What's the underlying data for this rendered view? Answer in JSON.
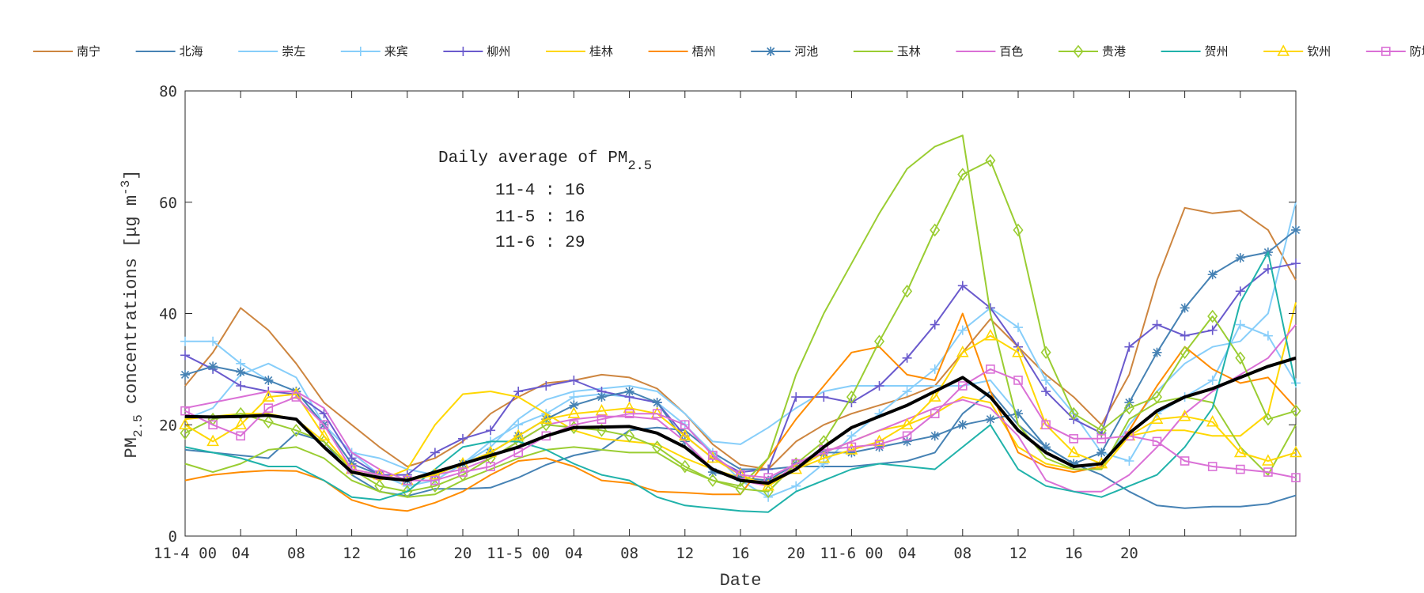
{
  "chart_data": {
    "type": "line",
    "title": "",
    "xlabel": "Date",
    "ylabel": {
      "base": "PM",
      "sub": "2.5",
      "rest": " concentrations [μg m",
      "sup": "-3",
      "end": "]"
    },
    "xlim": [
      0,
      80
    ],
    "ylim": [
      0,
      80
    ],
    "x_unit": "hours since 11-4 00:00",
    "yticks": [
      0,
      20,
      40,
      60,
      80
    ],
    "xticks": [
      0,
      4,
      8,
      12,
      16,
      20,
      24,
      28,
      32,
      36,
      40,
      44,
      48,
      52,
      56,
      60,
      64,
      68,
      72,
      76
    ],
    "xticklabels": [
      "11-4 00",
      "04",
      "08",
      "12",
      "16",
      "20",
      "11-5 00",
      "04",
      "08",
      "12",
      "16",
      "20",
      "11-6 00",
      "04",
      "08",
      "12",
      "16",
      "20",
      "",
      ""
    ],
    "grid": false,
    "legend_placement": "top",
    "annotation": {
      "title": "Daily average of PM",
      "title_sub": "2.5",
      "lines": [
        "11-4 : 16",
        "11-5 : 16",
        "11-6 : 29"
      ]
    },
    "x": [
      0,
      2,
      4,
      6,
      8,
      10,
      12,
      14,
      16,
      18,
      20,
      22,
      24,
      26,
      28,
      30,
      32,
      34,
      36,
      38,
      40,
      42,
      44,
      46,
      48,
      50,
      52,
      54,
      56,
      58,
      60,
      62,
      64,
      66,
      68,
      70,
      72,
      74,
      76,
      78,
      80
    ],
    "series": [
      {
        "name": "南宁",
        "color": "#CD853F",
        "marker": "none",
        "values": [
          27,
          33,
          41,
          37,
          31,
          24,
          20,
          16,
          12.5,
          14,
          17,
          22,
          25,
          27.5,
          28,
          29,
          28.5,
          26.5,
          22,
          16.5,
          12.8,
          12,
          17,
          20,
          22,
          23.5,
          25,
          27,
          33,
          39,
          34,
          29,
          25,
          20,
          29,
          46,
          59,
          58,
          58.5,
          55,
          46
        ]
      },
      {
        "name": "北海",
        "color": "#4682B4",
        "marker": "none",
        "values": [
          15.5,
          15,
          14.5,
          14,
          18.5,
          17,
          11,
          8,
          7.2,
          8.5,
          8.5,
          8.7,
          10.5,
          12.8,
          14.5,
          15.5,
          19,
          19.5,
          19,
          15,
          12,
          12,
          12.5,
          12.5,
          12.5,
          13,
          13.5,
          15,
          22,
          26,
          20,
          16,
          13,
          11,
          8,
          5.5,
          5,
          5.3,
          5.3,
          5.8,
          7.3
        ]
      },
      {
        "name": "崇左",
        "color": "#87CEFA",
        "marker": "none",
        "values": [
          21,
          23,
          29,
          31,
          28.5,
          20,
          15,
          14,
          12,
          11,
          13,
          16,
          21,
          24.5,
          26,
          26.5,
          27,
          26,
          22,
          17,
          16.5,
          19.5,
          23,
          26,
          27,
          27,
          27,
          27,
          27,
          28,
          22,
          16,
          13,
          12,
          20,
          26,
          31,
          34,
          35,
          40,
          60
        ]
      },
      {
        "name": "来宾",
        "color": "#87CEFA",
        "marker": "plus",
        "values": [
          35,
          35,
          31,
          28,
          26,
          20,
          15,
          11,
          9,
          10,
          13,
          17,
          20,
          22,
          25,
          25.5,
          25,
          24,
          20,
          15,
          10,
          7,
          9,
          13,
          18,
          22,
          26,
          30,
          37,
          41,
          37.5,
          28,
          22,
          15,
          13.5,
          22,
          25,
          28,
          38,
          36,
          27.5
        ]
      },
      {
        "name": "柳州",
        "color": "#6A5ACD",
        "marker": "plus",
        "values": [
          32.5,
          30,
          27,
          26,
          25.5,
          22,
          14,
          11,
          11,
          15,
          17.5,
          19,
          26,
          27,
          28,
          26,
          25,
          24,
          18,
          14,
          11.5,
          12,
          25,
          25,
          24,
          27,
          32,
          38,
          45,
          41,
          34,
          26,
          21,
          18.5,
          34,
          38,
          36,
          37,
          44,
          48,
          49
        ]
      },
      {
        "name": "桂林",
        "color": "#FFD700",
        "marker": "none",
        "values": [
          21,
          21.5,
          22,
          22,
          21,
          17,
          12,
          10,
          12,
          20,
          25.5,
          26,
          25,
          22,
          19,
          17.5,
          17,
          16.5,
          14,
          12,
          10.5,
          10,
          12,
          15,
          17,
          19,
          20,
          22,
          25,
          24,
          16,
          13,
          12,
          12,
          18,
          19,
          19,
          18,
          18,
          22,
          42
        ]
      },
      {
        "name": "梧州",
        "color": "#FF8C00",
        "marker": "none",
        "values": [
          10,
          11,
          11.5,
          11.8,
          11.7,
          10,
          6.5,
          5,
          4.5,
          6,
          8,
          11,
          13.5,
          14,
          12.5,
          10,
          9.5,
          8,
          7.8,
          7.5,
          7.5,
          14,
          21,
          27,
          33,
          34,
          29,
          28,
          40,
          26,
          15,
          12.5,
          11.5,
          12.5,
          19,
          27,
          34,
          30,
          27.5,
          28.5,
          23
        ]
      },
      {
        "name": "河池",
        "color": "#4682B4",
        "marker": "star",
        "values": [
          29,
          30.5,
          29.5,
          28,
          26,
          20,
          13,
          11,
          10,
          11,
          13,
          15,
          18,
          21,
          23.5,
          25,
          26,
          24,
          17,
          11.5,
          10.5,
          10,
          13,
          15,
          15,
          16,
          17,
          18,
          20,
          21,
          22,
          16,
          13,
          15,
          24,
          33,
          41,
          47,
          50,
          51,
          55
        ]
      },
      {
        "name": "玉林",
        "color": "#9ACD32",
        "marker": "none",
        "values": [
          13,
          11.5,
          13,
          15.5,
          16,
          14,
          10,
          8,
          7,
          7.5,
          10,
          12,
          14,
          15.5,
          16,
          15.5,
          15,
          15,
          12,
          10,
          9,
          14,
          29,
          40,
          49,
          58,
          66,
          70,
          72,
          40,
          20,
          14,
          12,
          12,
          21,
          24,
          25,
          24,
          16,
          11,
          20
        ]
      },
      {
        "name": "百色",
        "color": "#DA70D6",
        "marker": "none",
        "values": [
          23,
          24,
          25,
          26,
          26,
          23,
          15,
          12,
          10,
          11,
          12,
          14,
          17,
          20,
          21,
          21.5,
          21.5,
          21,
          17,
          12,
          10,
          9,
          13,
          15,
          17,
          19,
          21,
          23,
          24.5,
          23,
          18,
          10,
          8,
          8,
          11,
          16,
          22,
          26,
          29,
          32,
          38
        ]
      },
      {
        "name": "贵港",
        "color": "#9ACD32",
        "marker": "diamond",
        "values": [
          18.5,
          21,
          22,
          20.5,
          19,
          17,
          12,
          9,
          8,
          9,
          11,
          14,
          17,
          20,
          19.5,
          19,
          18,
          16,
          12.5,
          10,
          8.5,
          8,
          13,
          17,
          25,
          35,
          44,
          55,
          65,
          67.5,
          55,
          33,
          22,
          19,
          23,
          25,
          33,
          39.5,
          32,
          21,
          22.5
        ]
      },
      {
        "name": "贺州",
        "color": "#20B2AA",
        "marker": "none",
        "values": [
          16,
          15,
          14,
          12.5,
          12.5,
          10,
          7,
          6.5,
          8,
          12,
          16,
          17,
          17,
          15.5,
          13,
          11,
          10,
          7,
          5.5,
          5,
          4.5,
          4.3,
          8,
          10,
          12,
          13,
          12.5,
          12,
          16,
          20,
          12,
          9,
          8,
          7,
          9,
          11,
          16,
          23,
          42,
          51,
          27
        ]
      },
      {
        "name": "钦州",
        "color": "#FFD700",
        "marker": "triangle",
        "values": [
          20,
          17,
          20,
          25,
          25.5,
          18,
          12,
          11,
          10,
          11,
          13,
          15,
          18,
          21,
          22,
          22.5,
          23,
          22,
          18,
          14,
          11,
          9,
          12,
          14,
          15.5,
          17,
          20,
          25,
          33,
          36,
          33,
          20,
          15,
          13,
          18,
          21,
          21.5,
          20.5,
          15,
          13.5,
          15
        ]
      },
      {
        "name": "防城港",
        "color": "#DA70D6",
        "marker": "square",
        "values": [
          22.5,
          20,
          18,
          23,
          25,
          20,
          12,
          11,
          10,
          10,
          11.5,
          12.5,
          15,
          18,
          20,
          21,
          22,
          22,
          20,
          14.5,
          11,
          10.5,
          13,
          15.5,
          16,
          16.5,
          18,
          22,
          27,
          30,
          28,
          20,
          17.5,
          17.5,
          18,
          17,
          13.5,
          12.5,
          12,
          11.5,
          10.5
        ]
      }
    ],
    "mean_series": {
      "color": "#000000",
      "values": [
        21.5,
        21.4,
        21.5,
        21.7,
        21,
        16,
        11.5,
        10.5,
        10,
        11.5,
        13,
        14.5,
        16,
        18,
        19.5,
        19.6,
        19.7,
        18.5,
        16,
        12,
        10,
        9.5,
        12,
        16,
        19.5,
        21.5,
        23.5,
        26,
        28.5,
        25,
        19,
        15,
        12.5,
        13,
        18.5,
        22.5,
        25,
        26.5,
        28.5,
        30.5,
        32
      ]
    }
  }
}
